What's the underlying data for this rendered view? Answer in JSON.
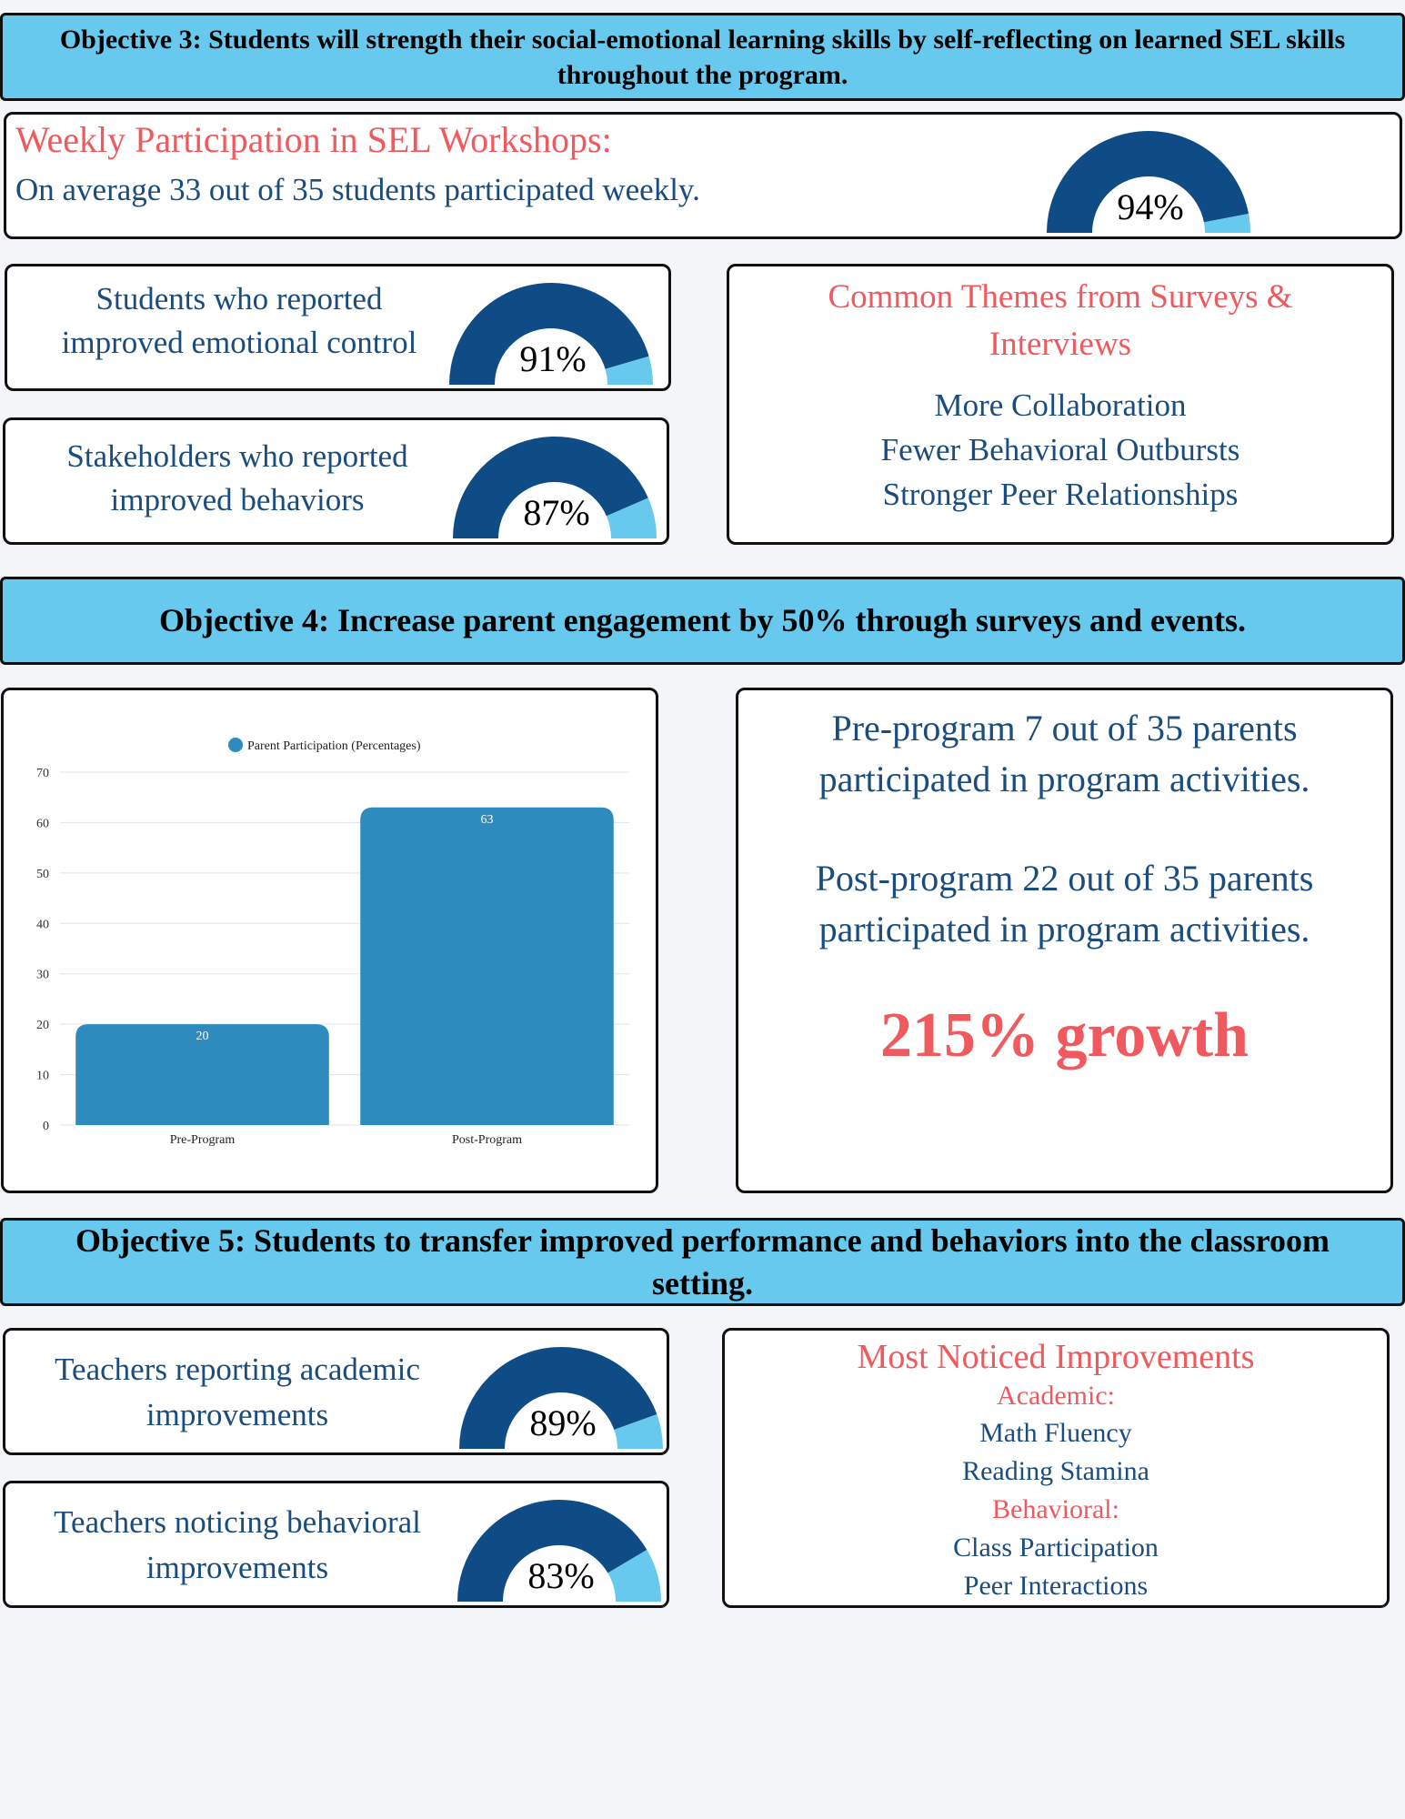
{
  "objective3": {
    "banner": "Objective 3: Students will strength their social-emotional learning skills by self-reflecting on learned SEL skills throughout the program.",
    "weekly": {
      "title": "Weekly Participation in SEL Workshops:",
      "text": "On average 33 out of 35 students participated weekly.",
      "gauge": {
        "value": 94,
        "label": "94%"
      }
    },
    "emotional": {
      "line1": "Students who reported",
      "line2": "improved emotional control",
      "gauge": {
        "value": 91,
        "label": "91%"
      }
    },
    "behaviors": {
      "line1": "Stakeholders who reported",
      "line2": "improved behaviors",
      "gauge": {
        "value": 87,
        "label": "87%"
      }
    },
    "themes": {
      "title_line1": "Common Themes from Surveys &",
      "title_line2": "Interviews",
      "items": [
        "More Collaboration",
        "Fewer Behavioral Outbursts",
        "Stronger Peer Relationships"
      ]
    }
  },
  "objective4": {
    "banner": "Objective 4: Increase parent engagement by 50% through surveys and events.",
    "pre_text": [
      "Pre-program 7 out of 35 parents",
      "participated in program activities."
    ],
    "post_text": [
      "Post-program 22 out of 35 parents",
      "participated in program activities."
    ],
    "growth": "215% growth"
  },
  "objective5": {
    "banner_line1": "Objective 5: Students to transfer improved performance and behaviors into the classroom",
    "banner_line2": "setting.",
    "academic": {
      "line1": "Teachers reporting academic",
      "line2": "improvements",
      "gauge": {
        "value": 89,
        "label": "89%"
      }
    },
    "behavioral": {
      "line1": "Teachers noticing behavioral",
      "line2": "improvements",
      "gauge": {
        "value": 83,
        "label": "83%"
      }
    },
    "noticed": {
      "title": "Most Noticed Improvements",
      "academic_label": "Academic:",
      "academic_items": [
        "Math Fluency",
        "Reading Stamina"
      ],
      "behavioral_label": "Behavioral:",
      "behavioral_items": [
        "Class Participation",
        "Peer Interactions"
      ]
    }
  },
  "colors": {
    "gauge_dark": "#0f4c85",
    "gauge_light": "#66c9ed",
    "bar": "#2e8bbd",
    "accent_red": "#f05a5e"
  },
  "chart_data": {
    "type": "bar",
    "legend": "Parent Participation (Percentages)",
    "categories": [
      "Pre-Program",
      "Post-Program"
    ],
    "series": [
      {
        "name": "Parent Participation (Percentages)",
        "values": [
          20,
          63
        ]
      }
    ],
    "ylim": [
      0,
      70
    ],
    "yticks": [
      0,
      10,
      20,
      30,
      40,
      50,
      60,
      70
    ],
    "grid": true,
    "legend_position": "top"
  }
}
